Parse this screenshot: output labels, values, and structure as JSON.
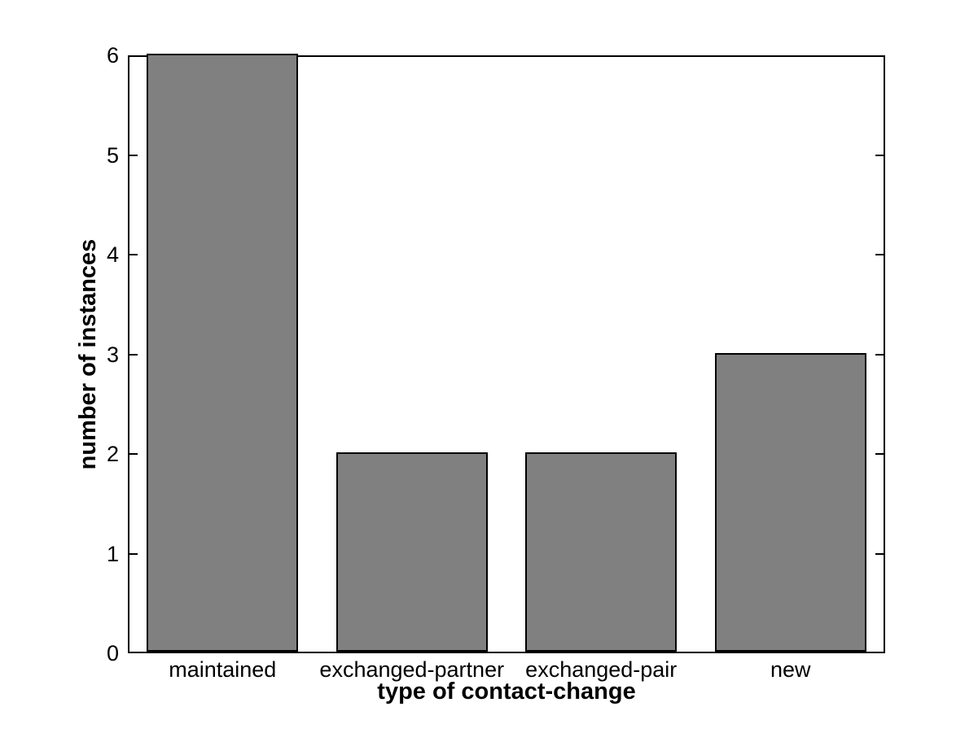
{
  "chart_data": {
    "type": "bar",
    "categories": [
      "maintained",
      "exchanged-partner",
      "exchanged-pair",
      "new"
    ],
    "values": [
      6,
      2,
      2,
      3
    ],
    "title": "",
    "xlabel": "type of contact-change",
    "ylabel": "number of instances",
    "ylim": [
      0,
      6
    ],
    "yticks": [
      0,
      1,
      2,
      3,
      4,
      5,
      6
    ],
    "bar_color": "#808080",
    "bar_edge_color": "#000000",
    "axis_color": "#000000",
    "background_color": "#ffffff",
    "grid": false,
    "legend": null,
    "legend_position": "none"
  }
}
